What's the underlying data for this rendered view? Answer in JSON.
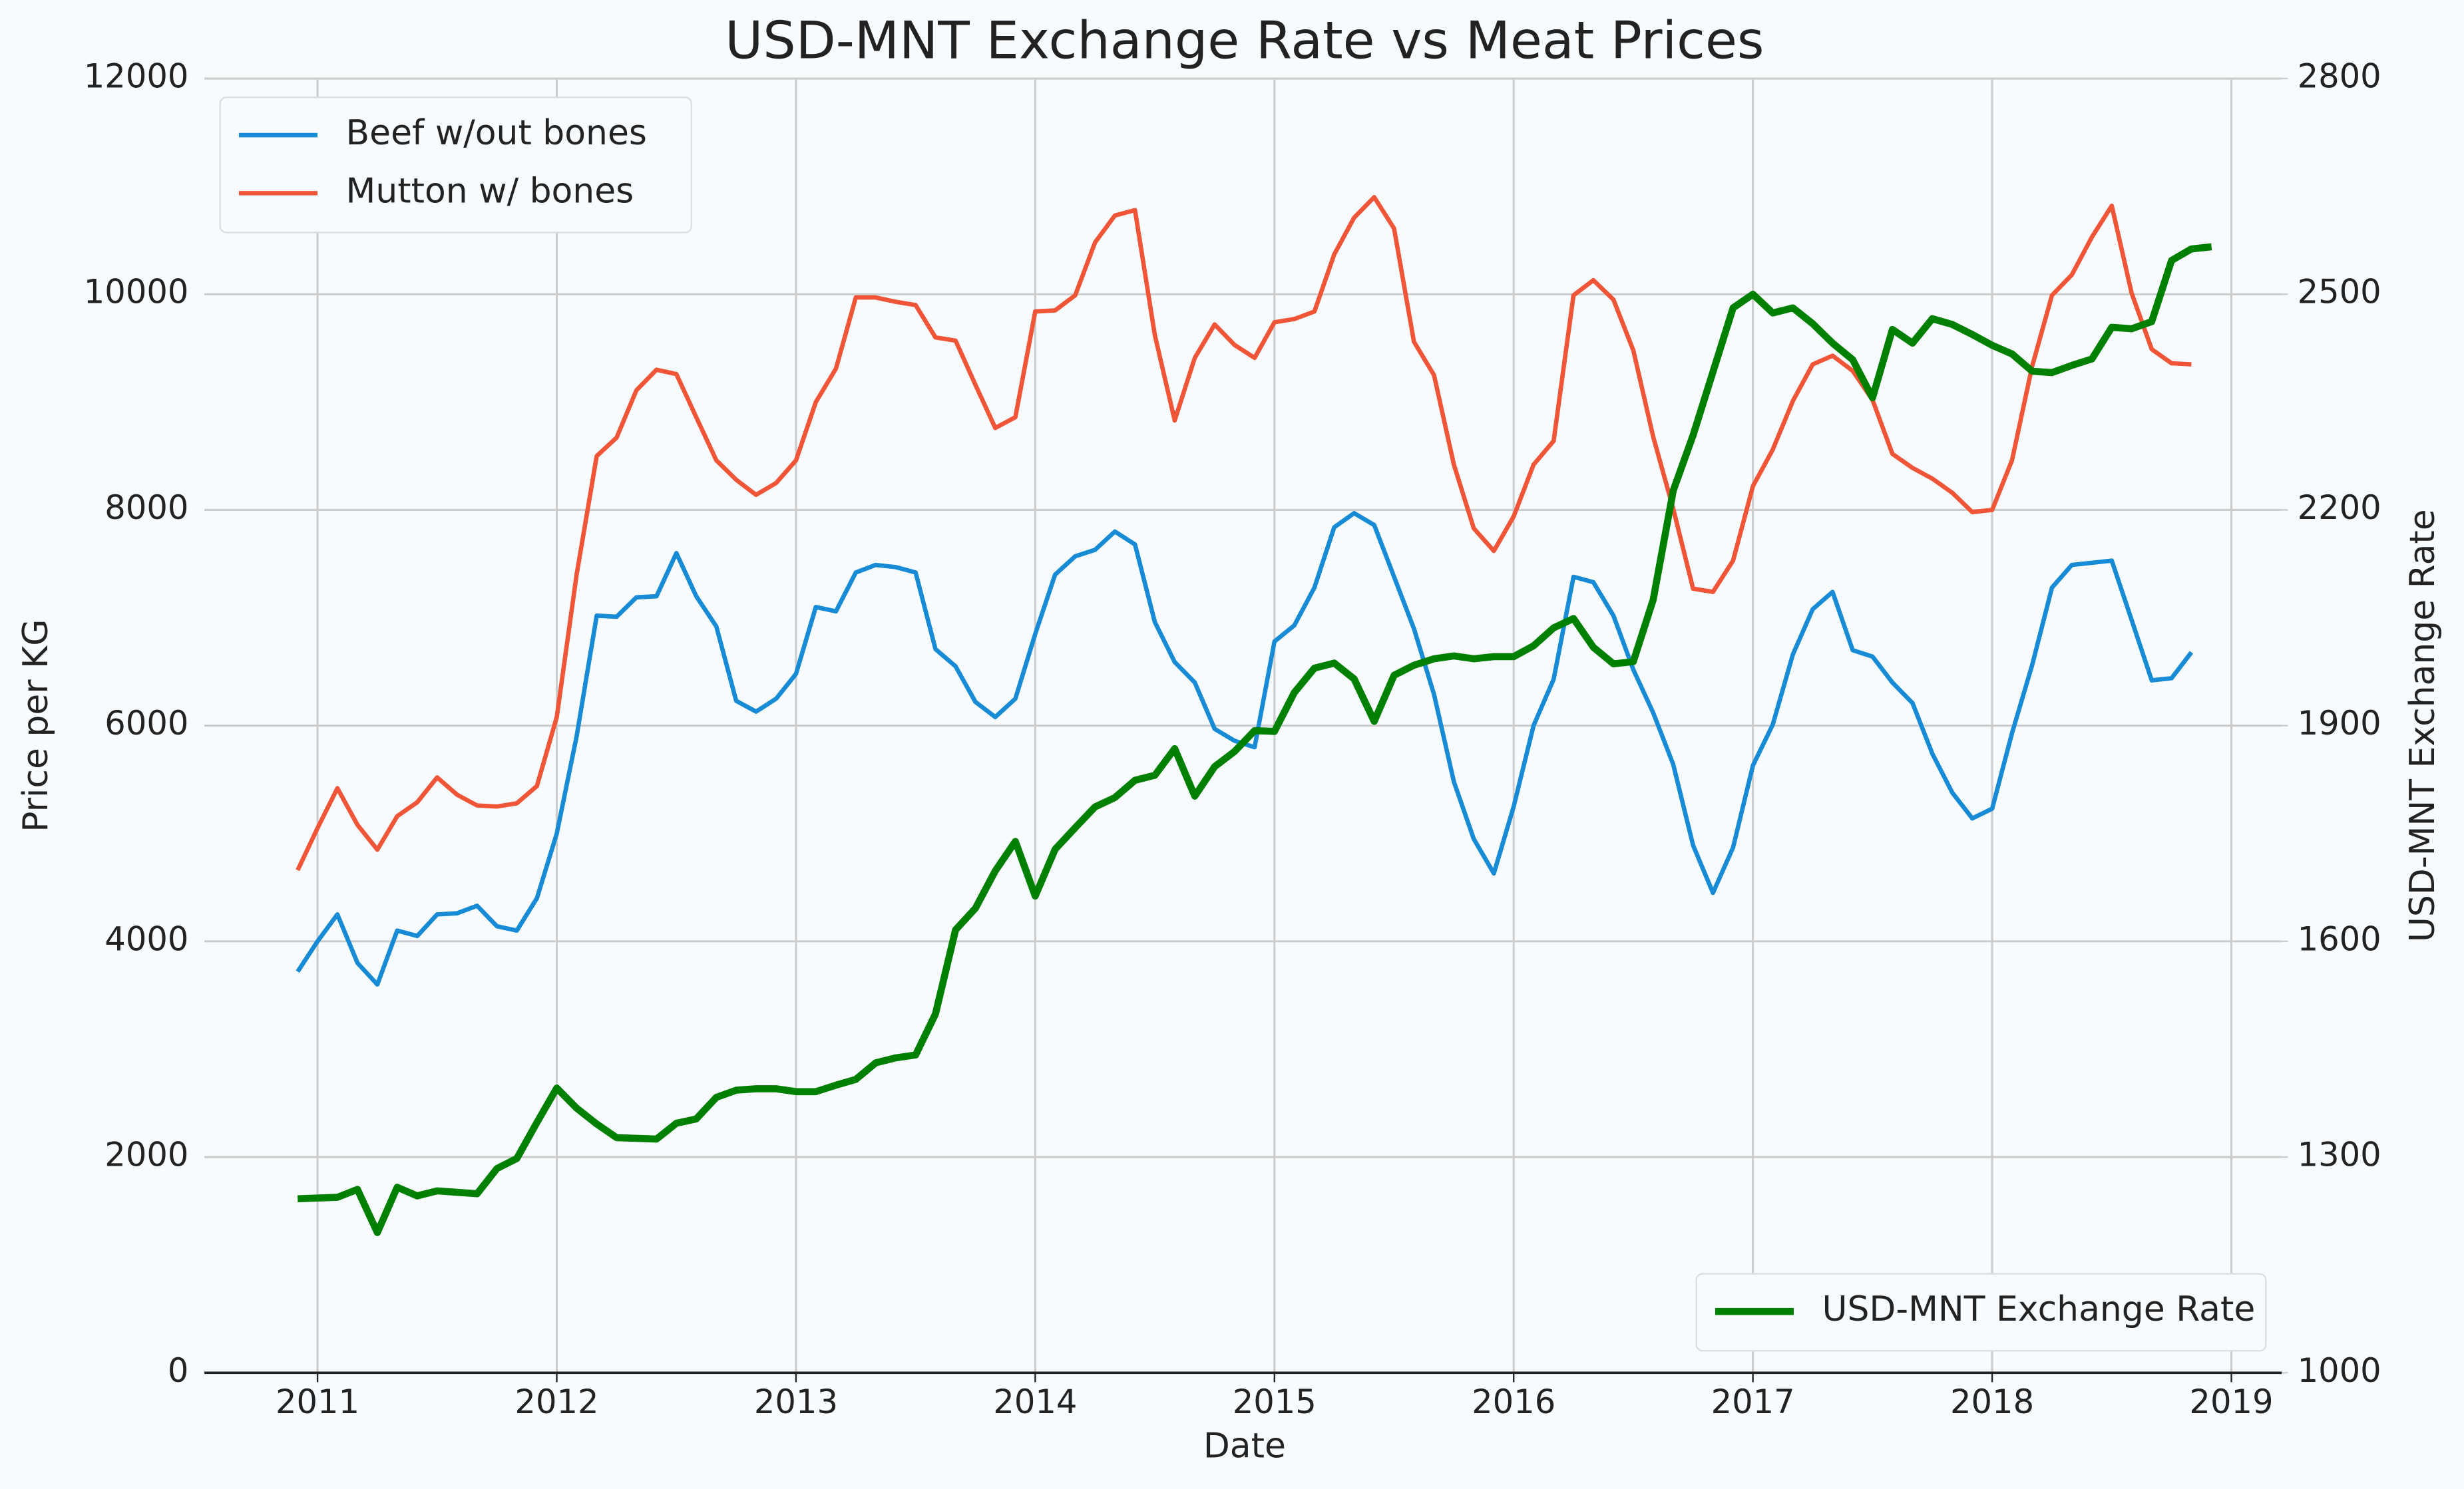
{
  "chart_data": {
    "type": "line",
    "title": "USD-MNT Exchange Rate vs Meat Prices",
    "x_label": "Date",
    "y_label": "Price per KG",
    "y2_label": "USD-MNT Exchange Rate",
    "x": [
      2010.917,
      2011,
      2011.083,
      2011.167,
      2011.25,
      2011.333,
      2011.417,
      2011.5,
      2011.583,
      2011.667,
      2011.75,
      2011.833,
      2011.917,
      2012,
      2012.083,
      2012.167,
      2012.25,
      2012.333,
      2012.417,
      2012.5,
      2012.583,
      2012.667,
      2012.75,
      2012.833,
      2012.917,
      2013,
      2013.083,
      2013.167,
      2013.25,
      2013.333,
      2013.417,
      2013.5,
      2013.583,
      2013.667,
      2013.75,
      2013.833,
      2013.917,
      2014,
      2014.083,
      2014.167,
      2014.25,
      2014.333,
      2014.417,
      2014.5,
      2014.583,
      2014.667,
      2014.75,
      2014.833,
      2014.917,
      2015,
      2015.083,
      2015.167,
      2015.25,
      2015.333,
      2015.417,
      2015.5,
      2015.583,
      2015.667,
      2015.75,
      2015.833,
      2015.917,
      2016,
      2016.083,
      2016.167,
      2016.25,
      2016.333,
      2016.417,
      2016.5,
      2016.583,
      2016.667,
      2016.75,
      2016.833,
      2016.917,
      2017,
      2017.083,
      2017.167,
      2017.25,
      2017.333,
      2017.417,
      2017.5,
      2017.583,
      2017.667,
      2017.75,
      2017.833,
      2017.917,
      2018,
      2018.083,
      2018.167,
      2018.25,
      2018.333,
      2018.417,
      2018.5,
      2018.583,
      2018.667,
      2018.75,
      2018.833,
      2018.917
    ],
    "series": [
      {
        "name": "Beef w/out bones",
        "color": "#178bd5",
        "values": [
          3720,
          4000,
          4250,
          3800,
          3600,
          4100,
          4050,
          4250,
          4260,
          4330,
          4140,
          4100,
          4400,
          5000,
          5900,
          7020,
          7010,
          7190,
          7200,
          7600,
          7200,
          6920,
          6230,
          6130,
          6250,
          6480,
          7100,
          7060,
          7420,
          7490,
          7470,
          7420,
          6710,
          6550,
          6220,
          6080,
          6250,
          6850,
          7400,
          7570,
          7630,
          7800,
          7680,
          6960,
          6590,
          6400,
          5970,
          5860,
          5800,
          6780,
          6930,
          7280,
          7840,
          7970,
          7860,
          7380,
          6900,
          6290,
          5480,
          4950,
          4630,
          5250,
          6000,
          6430,
          7380,
          7330,
          7020,
          6520,
          6120,
          5640,
          4890,
          4450,
          4870,
          5630,
          6010,
          6660,
          7080,
          7240,
          6700,
          6640,
          6400,
          6210,
          5740,
          5380,
          5140,
          5230,
          5930,
          6560,
          7280,
          7490,
          7510,
          7530,
          6980,
          6420,
          6440,
          6680,
          null
        ]
      },
      {
        "name": "Mutton w/ bones",
        "color": "#f05537",
        "values": [
          4660,
          5050,
          5420,
          5080,
          4850,
          5160,
          5290,
          5520,
          5360,
          5260,
          5250,
          5280,
          5440,
          6080,
          7400,
          8500,
          8670,
          9110,
          9300,
          9260,
          8860,
          8460,
          8280,
          8140,
          8250,
          8460,
          9000,
          9310,
          9970,
          9970,
          9930,
          9900,
          9600,
          9570,
          9160,
          8760,
          8860,
          9840,
          9850,
          9990,
          10480,
          10730,
          10780,
          9620,
          8830,
          9410,
          9720,
          9530,
          9410,
          9740,
          9770,
          9840,
          10370,
          10710,
          10900,
          10610,
          9560,
          9250,
          8420,
          7830,
          7620,
          7940,
          8420,
          8640,
          9990,
          10130,
          9950,
          9480,
          8680,
          8010,
          7270,
          7240,
          7530,
          8220,
          8560,
          9010,
          9350,
          9430,
          9290,
          9020,
          8520,
          8390,
          8290,
          8160,
          7980,
          8000,
          8460,
          9330,
          9990,
          10180,
          10530,
          10820,
          10010,
          9490,
          9360,
          9350,
          null
        ]
      },
      {
        "name": "USD-MNT Exchange Rate",
        "color": "#008000",
        "axis": "y2",
        "values": [
          1242,
          1243,
          1244,
          1255,
          1195,
          1258,
          1246,
          1253,
          1251,
          1249,
          1284,
          1298,
          1348,
          1396,
          1368,
          1346,
          1327,
          1326,
          1325,
          1347,
          1353,
          1383,
          1393,
          1395,
          1395,
          1391,
          1391,
          1400,
          1408,
          1431,
          1438,
          1442,
          1499,
          1616,
          1646,
          1698,
          1739,
          1663,
          1728,
          1758,
          1787,
          1800,
          1824,
          1831,
          1868,
          1802,
          1843,
          1864,
          1893,
          1892,
          1946,
          1980,
          1987,
          1965,
          1906,
          1970,
          1984,
          1993,
          1997,
          1993,
          1996,
          1996,
          2011,
          2036,
          2049,
          2009,
          1986,
          1989,
          2075,
          2227,
          2304,
          2392,
          2481,
          2500,
          2474,
          2481,
          2459,
          2432,
          2409,
          2356,
          2451,
          2432,
          2466,
          2458,
          2444,
          2429,
          2417,
          2393,
          2391,
          2401,
          2410,
          2454,
          2452,
          2462,
          2547,
          2563,
          2566
        ]
      }
    ],
    "xlim": [
      2010.527,
      2019.21
    ],
    "xticks": [
      2011,
      2012,
      2013,
      2014,
      2015,
      2016,
      2017,
      2018,
      2019
    ],
    "ylim": [
      0,
      12000
    ],
    "yticks": [
      0,
      2000,
      4000,
      6000,
      8000,
      10000,
      12000
    ],
    "y2lim": [
      1000,
      2800
    ],
    "y2ticks": [
      1000,
      1300,
      1600,
      1900,
      2200,
      2500,
      2800
    ],
    "grid": true,
    "legend_loc": "upper left",
    "y2_legend_loc": "lower right"
  }
}
